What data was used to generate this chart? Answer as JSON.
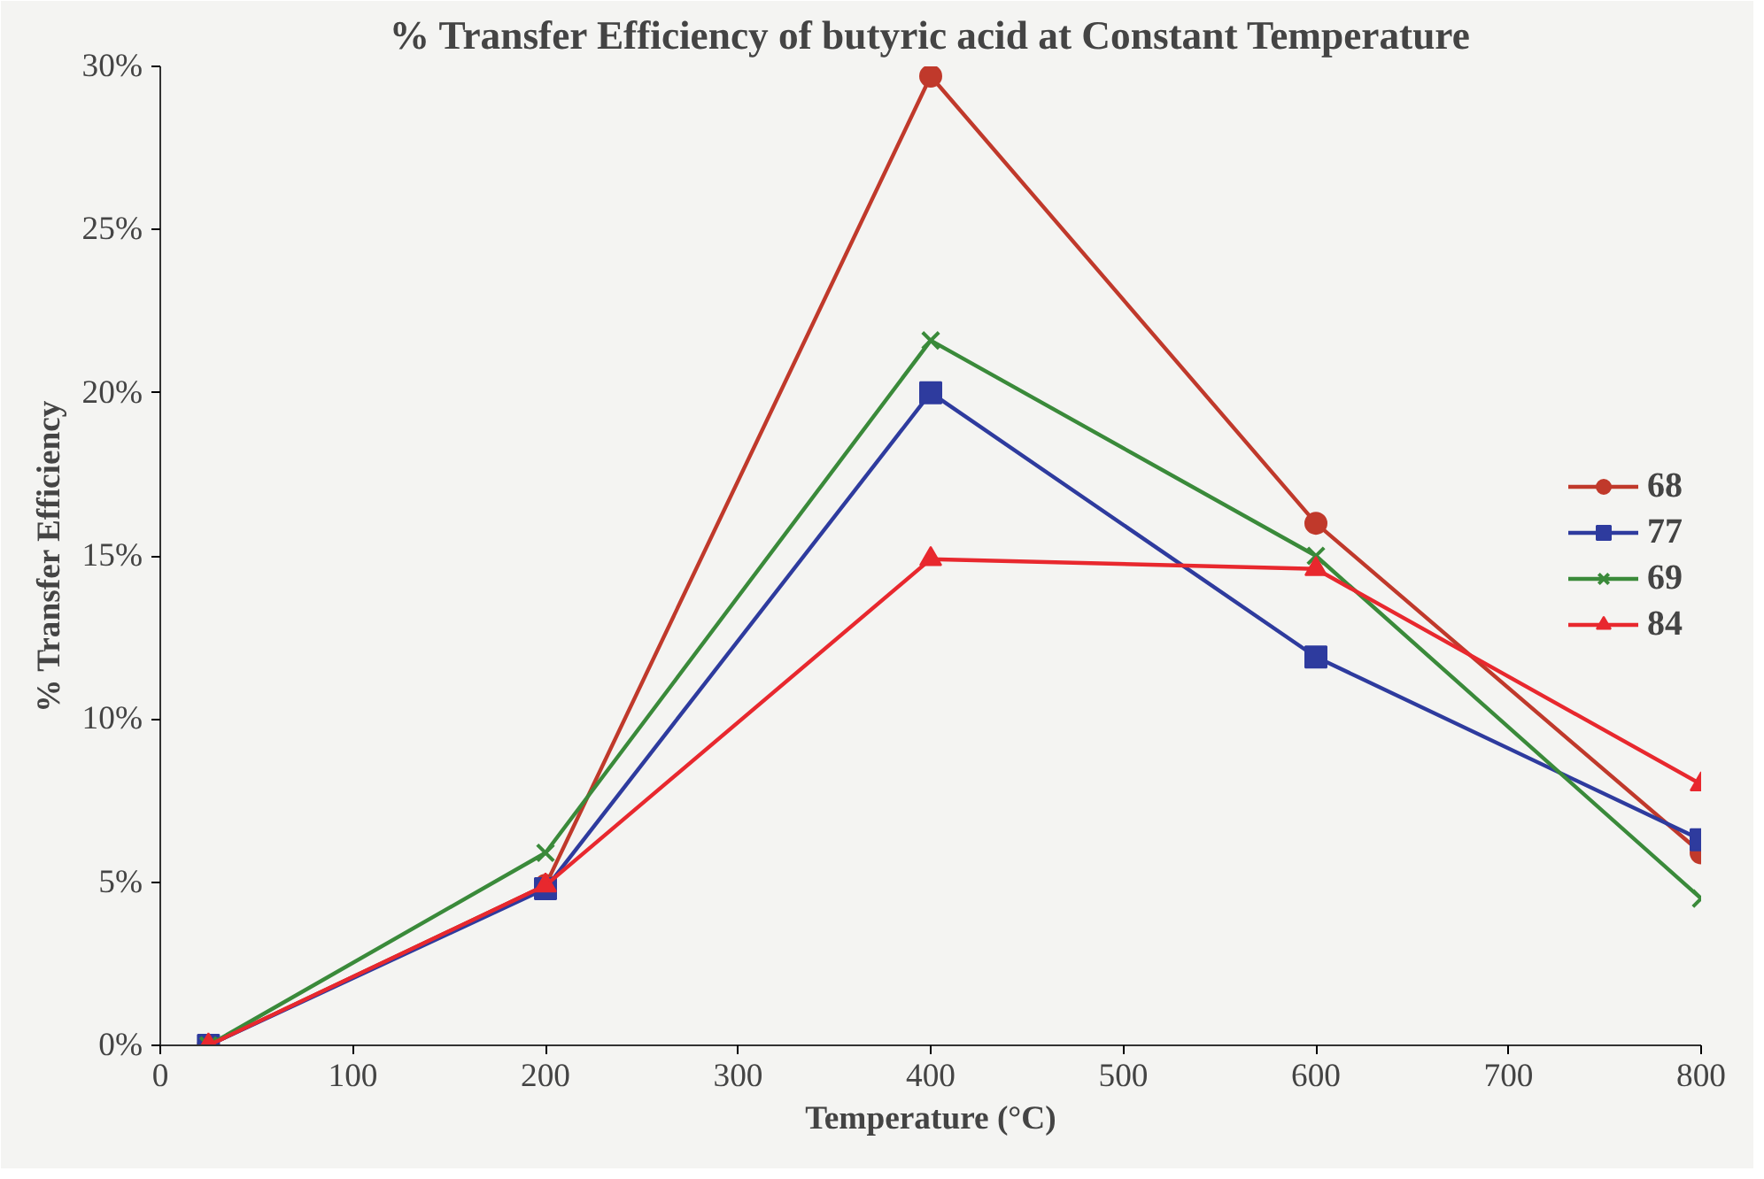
{
  "chart_data": {
    "type": "line",
    "title": "% Transfer Efficiency of butyric acid at Constant Temperature",
    "xlabel": "Temperature (°C)",
    "ylabel": "% Transfer Efficiency",
    "x": [
      25,
      200,
      400,
      600,
      800
    ],
    "series": [
      {
        "name": "68",
        "color": "#c0392b",
        "marker": "circle",
        "values": [
          0,
          4.9,
          29.7,
          16.0,
          5.9
        ]
      },
      {
        "name": "77",
        "color": "#2e3b9e",
        "marker": "square",
        "values": [
          0,
          4.8,
          20.0,
          11.9,
          6.3
        ]
      },
      {
        "name": "69",
        "color": "#3a8a3a",
        "marker": "cross",
        "values": [
          0,
          5.9,
          21.6,
          15.0,
          4.5
        ]
      },
      {
        "name": "84",
        "color": "#e8282e",
        "marker": "triangle",
        "values": [
          0,
          4.9,
          14.9,
          14.6,
          8.0
        ]
      }
    ],
    "xlim": [
      0,
      800
    ],
    "xticks": [
      0,
      100,
      200,
      300,
      400,
      500,
      600,
      700,
      800
    ],
    "ylim": [
      0,
      30
    ],
    "yticks": [
      {
        "value": 0,
        "label": "0%"
      },
      {
        "value": 5,
        "label": "5%"
      },
      {
        "value": 10,
        "label": "10%"
      },
      {
        "value": 15,
        "label": "15%"
      },
      {
        "value": 20,
        "label": "20%"
      },
      {
        "value": 25,
        "label": "25%"
      },
      {
        "value": 30,
        "label": "30%"
      }
    ],
    "grid": false,
    "legend": "right"
  }
}
